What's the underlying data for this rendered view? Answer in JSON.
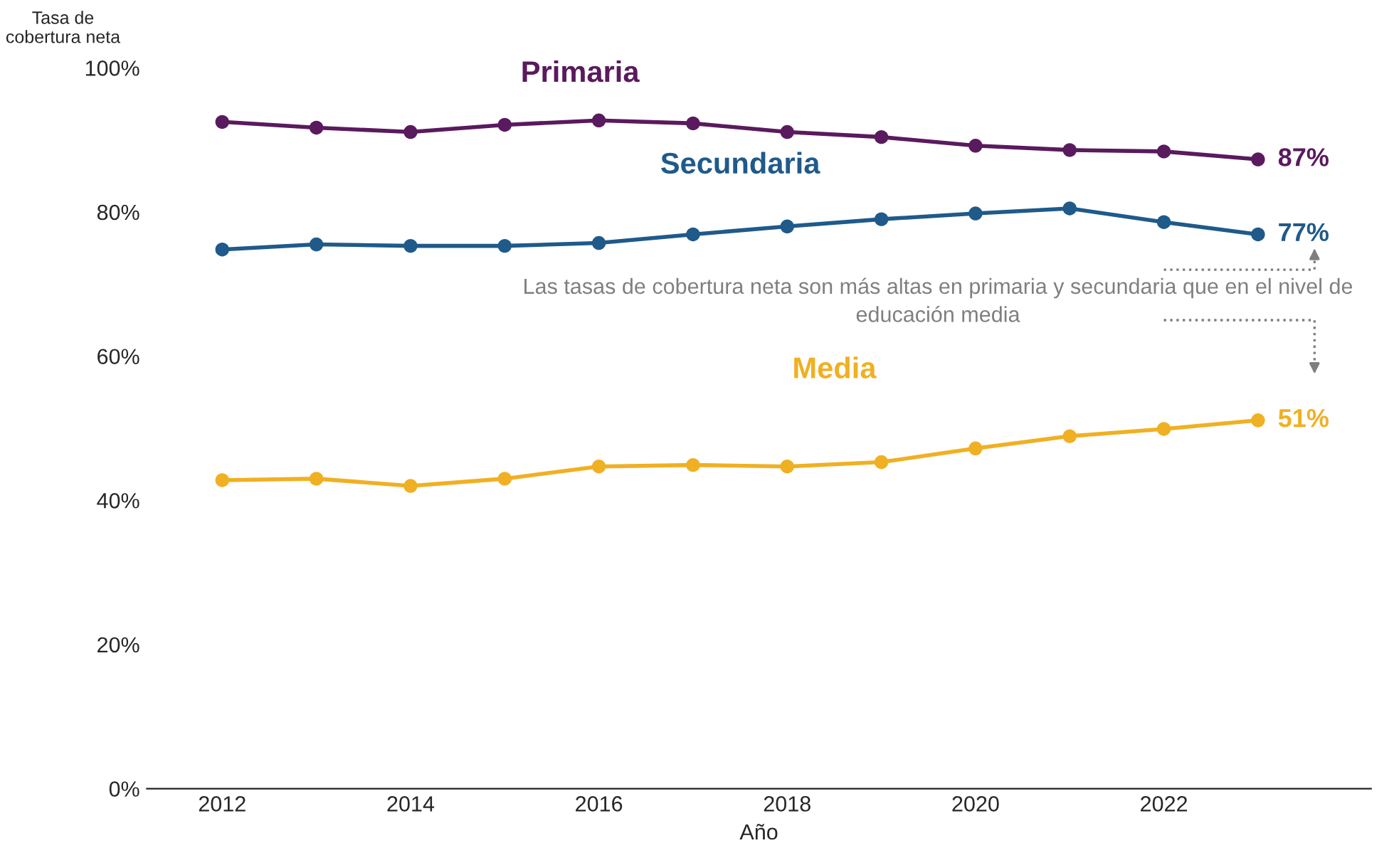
{
  "chart_data": {
    "type": "line",
    "ylabel": "Tasa de\ncobertura neta",
    "xlabel": "Año",
    "x": [
      2012,
      2013,
      2014,
      2015,
      2016,
      2017,
      2018,
      2019,
      2020,
      2021,
      2022,
      2023
    ],
    "series": [
      {
        "name": "Primaria",
        "color": "#5a1a5e",
        "values": [
          92.5,
          91.7,
          91.1,
          92.1,
          92.7,
          92.3,
          91.1,
          90.4,
          89.2,
          88.6,
          88.4,
          87.3
        ],
        "value_labels": [
          null,
          null,
          null,
          null,
          null,
          null,
          null,
          null,
          null,
          null,
          null,
          "87%"
        ]
      },
      {
        "name": "Secundaria",
        "color": "#1f5a8a",
        "values": [
          74.8,
          75.5,
          75.3,
          75.3,
          75.7,
          76.9,
          78.0,
          79.0,
          79.8,
          80.5,
          78.6,
          76.9
        ],
        "value_labels": [
          null,
          null,
          null,
          null,
          null,
          null,
          null,
          null,
          null,
          null,
          null,
          "77%"
        ]
      },
      {
        "name": "Media",
        "color": "#f0b023",
        "values": [
          42.8,
          43.0,
          42.0,
          43.0,
          44.7,
          44.9,
          44.7,
          45.3,
          47.2,
          48.9,
          49.9,
          51.1
        ],
        "value_labels": [
          null,
          null,
          null,
          null,
          null,
          null,
          null,
          null,
          null,
          null,
          null,
          "51%"
        ]
      }
    ],
    "xlim": [
      2011.2,
      2024.2
    ],
    "xticks": [
      2012,
      2014,
      2016,
      2018,
      2020,
      2022
    ],
    "ylim": [
      0,
      100
    ],
    "yticks": [
      {
        "value": 0,
        "label": "0%"
      },
      {
        "value": 20,
        "label": "20%"
      },
      {
        "value": 40,
        "label": "40%"
      },
      {
        "value": 60,
        "label": "60%"
      },
      {
        "value": 80,
        "label": "80%"
      },
      {
        "value": 100,
        "label": "100%"
      }
    ],
    "grid": false,
    "legend": false,
    "marker": "circle",
    "line_style": "solid",
    "annotations": [
      "Las tasas de cobertura neta son más altas en primaria y secundaria que en el nivel de educación media"
    ]
  }
}
